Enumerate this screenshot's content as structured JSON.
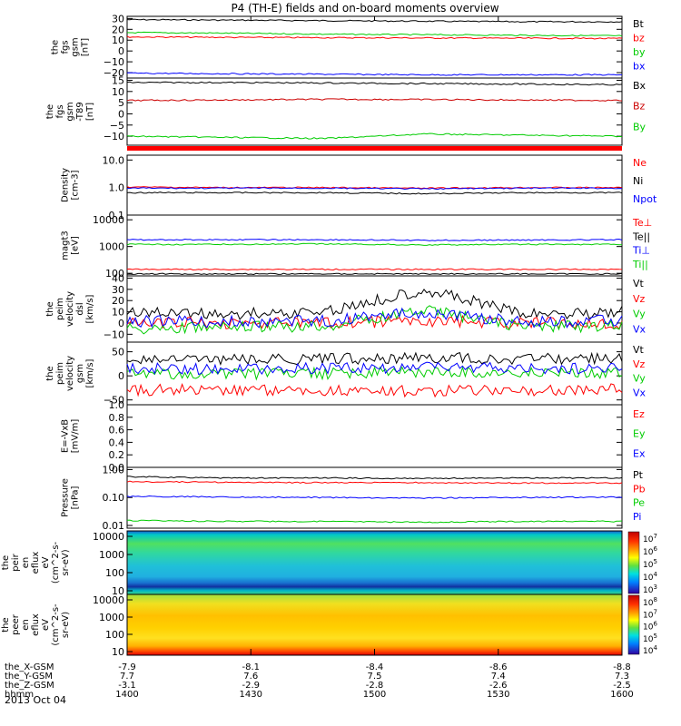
{
  "chart_data": {
    "type": "line",
    "title": "P4 (TH-E) fields and on-board moments overview",
    "date_label": "2013 Oct 04",
    "x_axis": {
      "rows": [
        {
          "label": "the_X-GSM",
          "values": [
            "-7.9",
            "-8.1",
            "-8.4",
            "-8.6",
            "-8.8"
          ]
        },
        {
          "label": "the_Y-GSM",
          "values": [
            "7.7",
            "7.6",
            "7.5",
            "7.4",
            "7.3"
          ]
        },
        {
          "label": "the_Z-GSM",
          "values": [
            "-3.1",
            "-2.9",
            "-2.8",
            "-2.6",
            "-2.5"
          ]
        },
        {
          "label": "hhmm",
          "values": [
            "1400",
            "1430",
            "1500",
            "1530",
            "1600"
          ]
        }
      ]
    },
    "panels": [
      {
        "id": "fgs_gsm",
        "ylabel": [
          "the",
          "fgs",
          "gsm",
          "[nT]"
        ],
        "ylim": [
          -25,
          32
        ],
        "yticks": [
          {
            "v": 30,
            "t": "30"
          },
          {
            "v": 20,
            "t": "20"
          },
          {
            "v": 10,
            "t": "10"
          },
          {
            "v": 0,
            "t": "0"
          },
          {
            "v": -10,
            "t": "−10"
          },
          {
            "v": -20,
            "t": "−20"
          }
        ],
        "series": [
          {
            "name": "Bt",
            "color": "#000000",
            "values": [
              29,
              28.5,
              28,
              27.5,
              27,
              27
            ]
          },
          {
            "name": "bz",
            "color": "#ff0000",
            "values": [
              13,
              12.6,
              12.3,
              12,
              11.8,
              11.5
            ]
          },
          {
            "name": "by",
            "color": "#00cc00",
            "values": [
              17,
              16.5,
              15.5,
              15,
              14.5,
              14
            ]
          },
          {
            "name": "bx",
            "color": "#0000ff",
            "values": [
              -20.5,
              -21,
              -21.5,
              -22,
              -22,
              -22
            ]
          }
        ]
      },
      {
        "id": "fgs_gsm_t89",
        "ylabel": [
          "the",
          "fgs",
          "gsm",
          "-T89",
          "[nT]"
        ],
        "ylim": [
          -14,
          16
        ],
        "yticks": [
          {
            "v": 15,
            "t": "15"
          },
          {
            "v": 10,
            "t": "10"
          },
          {
            "v": 5,
            "t": "5"
          },
          {
            "v": 0,
            "t": "0"
          },
          {
            "v": -5,
            "t": "−5"
          },
          {
            "v": -10,
            "t": "−10"
          }
        ],
        "series": [
          {
            "name": "Bx",
            "color": "#000000",
            "values": [
              14,
              14,
              13.8,
              13.5,
              13.3,
              13
            ]
          },
          {
            "name": "Bz",
            "color": "#cc0000",
            "values": [
              6,
              6.2,
              6.5,
              6.4,
              6.2,
              6
            ]
          },
          {
            "name": "By",
            "color": "#00cc00",
            "values": [
              -10,
              -10.5,
              -11,
              -9,
              -9.5,
              -10
            ]
          }
        ]
      },
      {
        "id": "density",
        "ylabel": [
          "Density",
          "[cm-3]"
        ],
        "log": true,
        "ylim": [
          0.1,
          15
        ],
        "yticks": [
          {
            "v": 10,
            "t": "10.0"
          },
          {
            "v": 1,
            "t": "1.0"
          },
          {
            "v": 0.1,
            "t": "0.1"
          }
        ],
        "series": [
          {
            "name": "Ne",
            "color": "#ff0000",
            "values": [
              1.05,
              1.0,
              1.0,
              0.95,
              1.0,
              1.0
            ]
          },
          {
            "name": "Ni",
            "color": "#000000",
            "values": [
              0.65,
              0.65,
              0.65,
              0.6,
              0.65,
              0.65
            ]
          },
          {
            "name": "Npot",
            "color": "#0000ff",
            "values": [
              0.95,
              0.95,
              0.95,
              0.9,
              0.95,
              0.95
            ]
          }
        ]
      },
      {
        "id": "magt3",
        "ylabel": [
          "magt3",
          "[eV]"
        ],
        "log": true,
        "ylim": [
          80,
          15000
        ],
        "yticks": [
          {
            "v": 10000,
            "t": "10000"
          },
          {
            "v": 1000,
            "t": "1000"
          },
          {
            "v": 100,
            "t": "100"
          }
        ],
        "series": [
          {
            "name": "Te⊥",
            "color": "#ff0000",
            "values": [
              140,
              140,
              140,
              140,
              140,
              140
            ]
          },
          {
            "name": "Te||",
            "color": "#000000",
            "values": [
              95,
              95,
              95,
              95,
              95,
              95
            ]
          },
          {
            "name": "Ti⊥",
            "color": "#0000ff",
            "values": [
              1800,
              1800,
              1800,
              1700,
              1750,
              1800
            ]
          },
          {
            "name": "Ti||",
            "color": "#00cc00",
            "values": [
              1200,
              1200,
              1250,
              1150,
              1200,
              1200
            ]
          }
        ]
      },
      {
        "id": "peim_velocity_dsl",
        "ylabel": [
          "the",
          "peim",
          "velocity",
          "dsl",
          "[km/s]"
        ],
        "ylim": [
          -17,
          42
        ],
        "yticks": [
          {
            "v": 40,
            "t": "40"
          },
          {
            "v": 30,
            "t": "30"
          },
          {
            "v": 20,
            "t": "20"
          },
          {
            "v": 10,
            "t": "10"
          },
          {
            "v": 0,
            "t": "0"
          },
          {
            "v": -10,
            "t": "−10"
          }
        ],
        "series": [
          {
            "name": "Vt",
            "color": "#000000",
            "values": [
              10,
              8,
              10,
              30,
              8,
              10
            ]
          },
          {
            "name": "Vz",
            "color": "#ff0000",
            "values": [
              0,
              0,
              0,
              2,
              0,
              0
            ]
          },
          {
            "name": "Vy",
            "color": "#00cc00",
            "values": [
              -5,
              -4,
              -3,
              12,
              -3,
              -3
            ]
          },
          {
            "name": "Vx",
            "color": "#0000ff",
            "values": [
              2,
              1,
              2,
              10,
              1,
              2
            ]
          }
        ]
      },
      {
        "id": "peim_velocity_gsm",
        "ylabel": [
          "the",
          "peim",
          "velocity",
          "gsm",
          "[km/s]"
        ],
        "ylim": [
          -60,
          70
        ],
        "yticks": [
          {
            "v": 50,
            "t": "50"
          },
          {
            "v": 0,
            "t": "0"
          },
          {
            "v": -50,
            "t": "−50"
          }
        ],
        "series": [
          {
            "name": "Vt",
            "color": "#000000",
            "values": [
              35,
              33,
              35,
              38,
              35,
              36
            ]
          },
          {
            "name": "Vz",
            "color": "#ff0000",
            "values": [
              -30,
              -28,
              -30,
              -32,
              -30,
              -28
            ]
          },
          {
            "name": "Vy",
            "color": "#00cc00",
            "values": [
              5,
              3,
              5,
              8,
              6,
              5
            ]
          },
          {
            "name": "Vx",
            "color": "#0000ff",
            "values": [
              15,
              14,
              16,
              18,
              15,
              16
            ]
          }
        ]
      },
      {
        "id": "e_vxb",
        "ylabel": [
          "E=-VxB",
          "[mV/m]"
        ],
        "ylim": [
          0,
          1
        ],
        "yticks": [
          {
            "v": 1.0,
            "t": "1.0"
          },
          {
            "v": 0.8,
            "t": "0.8"
          },
          {
            "v": 0.6,
            "t": "0.6"
          },
          {
            "v": 0.4,
            "t": "0.4"
          },
          {
            "v": 0.2,
            "t": "0.2"
          },
          {
            "v": 0.0,
            "t": "0.0"
          }
        ],
        "series": [
          {
            "name": "Ez",
            "color": "#ff0000",
            "values": []
          },
          {
            "name": "Ey",
            "color": "#00cc00",
            "values": []
          },
          {
            "name": "Ex",
            "color": "#0000ff",
            "values": []
          }
        ]
      },
      {
        "id": "pressure",
        "ylabel": [
          "Pressure",
          "[nPa]"
        ],
        "log": true,
        "ylim": [
          0.008,
          1.2
        ],
        "yticks": [
          {
            "v": 1,
            "t": "1.00"
          },
          {
            "v": 0.1,
            "t": "0.10"
          },
          {
            "v": 0.01,
            "t": "0.01"
          }
        ],
        "series": [
          {
            "name": "Pt",
            "color": "#000000",
            "values": [
              0.56,
              0.5,
              0.5,
              0.48,
              0.5,
              0.5
            ]
          },
          {
            "name": "Pb",
            "color": "#ff0000",
            "values": [
              0.37,
              0.35,
              0.34,
              0.34,
              0.33,
              0.33
            ]
          },
          {
            "name": "Pe",
            "color": "#00cc00",
            "values": [
              0.015,
              0.014,
              0.014,
              0.013,
              0.014,
              0.014
            ]
          },
          {
            "name": "Pi",
            "color": "#0000ff",
            "values": [
              0.11,
              0.105,
              0.1,
              0.095,
              0.1,
              0.105
            ]
          }
        ]
      }
    ],
    "spectrograms": [
      {
        "id": "peir_en_eflux",
        "ylabel": [
          "the",
          "peir",
          "en",
          "eflux",
          "eV",
          "(cm^2-s-",
          "sr-eV)"
        ],
        "yticks": [
          "10000",
          "1000",
          "100",
          "10"
        ],
        "colorbar_ticks": [
          "10^7",
          "10^6",
          "10^5",
          "10^4",
          "10^3"
        ]
      },
      {
        "id": "peer_en_eflux",
        "ylabel": [
          "the",
          "peer",
          "en",
          "eflux",
          "eV",
          "(cm^2-s-",
          "sr-eV)"
        ],
        "yticks": [
          "10000",
          "1000",
          "100",
          "10"
        ],
        "colorbar_ticks": [
          "10^8",
          "10^7",
          "10^6",
          "10^5",
          "10^4"
        ]
      }
    ]
  }
}
